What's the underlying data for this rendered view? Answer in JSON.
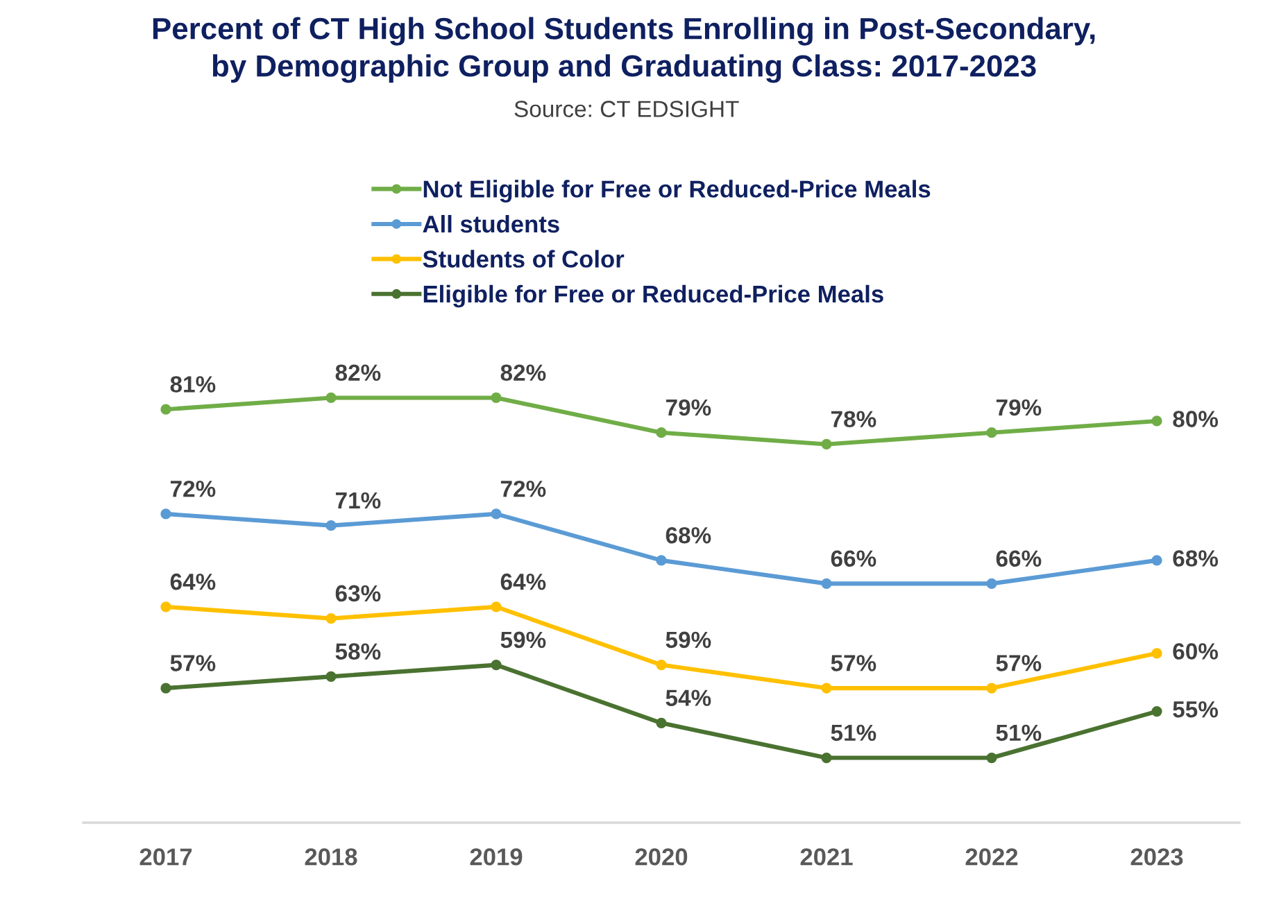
{
  "chart_data": {
    "type": "line",
    "title": "Percent of CT High School Students Enrolling in Post-Secondary,\nby Demographic Group and Graduating Class: 2017-2023",
    "subtitle": "Source: CT EDSIGHT",
    "categories": [
      "2017",
      "2018",
      "2019",
      "2020",
      "2021",
      "2022",
      "2023"
    ],
    "series": [
      {
        "name": "Not Eligible for Free or Reduced-Price Meals",
        "color": "#70ad47",
        "values": [
          81,
          82,
          82,
          79,
          78,
          79,
          80
        ],
        "value_labels": [
          "81%",
          "82%",
          "82%",
          "79%",
          "78%",
          "79%",
          "80%"
        ]
      },
      {
        "name": "All students",
        "color": "#5b9bd5",
        "values": [
          72,
          71,
          72,
          68,
          66,
          66,
          68
        ],
        "value_labels": [
          "72%",
          "71%",
          "72%",
          "68%",
          "66%",
          "66%",
          "68%"
        ]
      },
      {
        "name": "Students of Color",
        "color": "#ffc000",
        "values": [
          64,
          63,
          64,
          59,
          57,
          57,
          60
        ],
        "value_labels": [
          "64%",
          "63%",
          "64%",
          "59%",
          "57%",
          "57%",
          "60%"
        ]
      },
      {
        "name": "Eligible for Free or Reduced-Price Meals",
        "color": "#4a7230",
        "values": [
          57,
          58,
          59,
          54,
          51,
          51,
          55
        ],
        "value_labels": [
          "57%",
          "58%",
          "59%",
          "54%",
          "51%",
          "51%",
          "55%"
        ]
      }
    ],
    "tick_labels": "x",
    "legend": "top",
    "marker": "circle",
    "line_style": "solid"
  }
}
